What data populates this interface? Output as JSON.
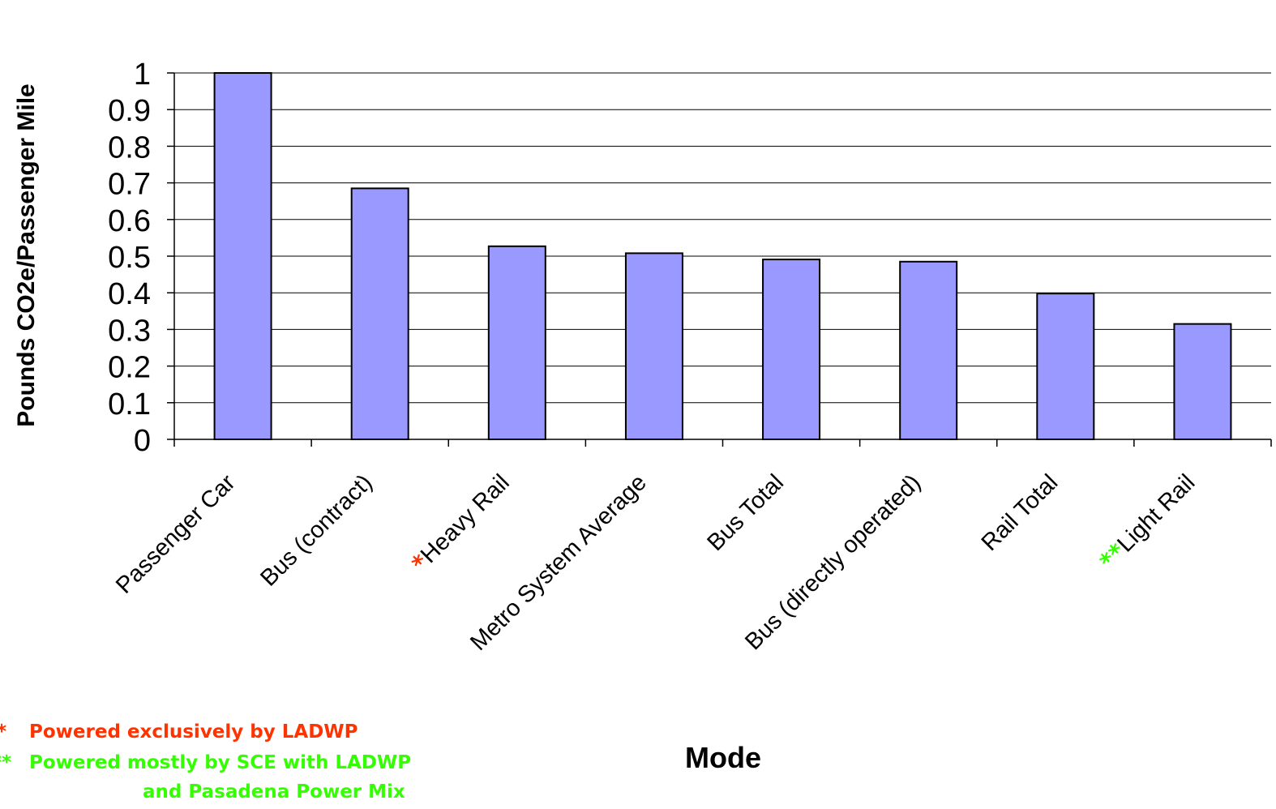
{
  "chart_data": {
    "type": "bar",
    "title": "",
    "xlabel": "Mode",
    "ylabel": "Pounds CO2e/Passenger Mile",
    "ylim": [
      0,
      1
    ],
    "yticks": [
      "0",
      "0.1",
      "0.2",
      "0.3",
      "0.4",
      "0.5",
      "0.6",
      "0.7",
      "0.8",
      "0.9",
      "1"
    ],
    "grid": true,
    "legend": "none",
    "bar_color": "#9999ff",
    "categories": [
      "Passenger Car",
      "Bus (contract)",
      "Heavy Rail",
      "Metro System Average",
      "Bus Total",
      "Bus (directly operated)",
      "Rail Total",
      "Light Rail"
    ],
    "category_marks": [
      "",
      "",
      "*",
      "",
      "",
      "",
      "",
      "**"
    ],
    "values": [
      1.0,
      0.685,
      0.527,
      0.508,
      0.491,
      0.485,
      0.398,
      0.315
    ]
  },
  "footnotes": [
    {
      "mark": "*",
      "text": "Powered exclusively by LADWP",
      "color": "#ff3300"
    },
    {
      "mark": "**",
      "text": "Powered mostly by SCE with LADWP",
      "text2": "and Pasadena Power Mix",
      "color": "#33ff00"
    }
  ]
}
